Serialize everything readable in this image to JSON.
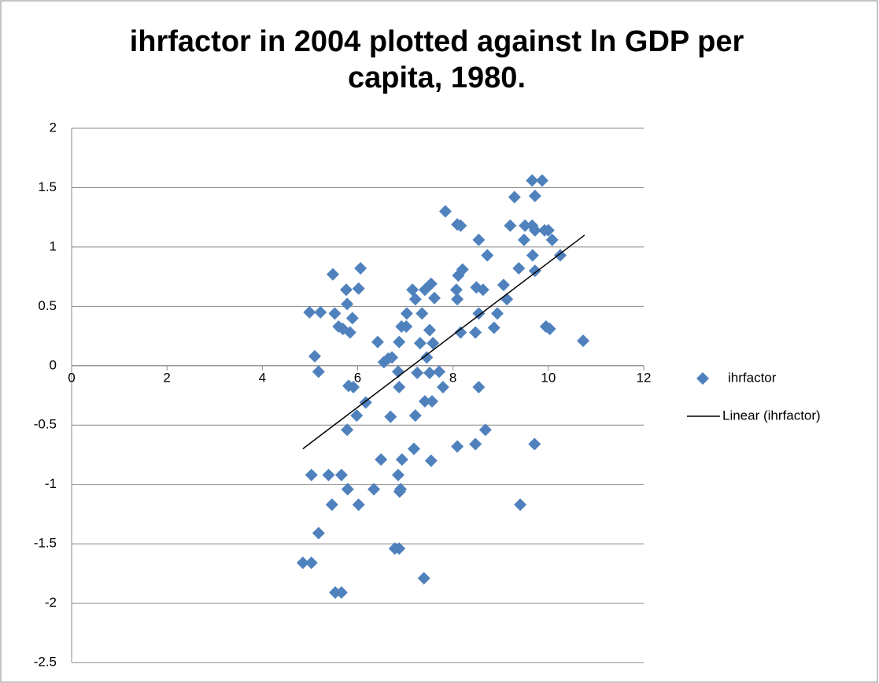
{
  "chart_data": {
    "type": "scatter",
    "title": "ihrfactor in 2004 plotted against ln GDP per capita, 1980.",
    "xlim": [
      0,
      12
    ],
    "xticks": [
      0,
      2,
      4,
      6,
      8,
      10,
      12
    ],
    "ylim": [
      -2.5,
      2
    ],
    "yticks": [
      -2.5,
      -2,
      -1.5,
      -1,
      -0.5,
      0,
      0.5,
      1,
      1.5,
      2
    ],
    "grid": true,
    "legend": "right",
    "series": [
      {
        "name": "ihrfactor",
        "color": "#4f81bd",
        "x": [
          4.99,
          5.22,
          5.1,
          5.18,
          5.48,
          5.52,
          5.6,
          5.69,
          5.76,
          5.78,
          5.84,
          5.89,
          6.06,
          6.02,
          5.81,
          5.91,
          5.78,
          5.98,
          6.17,
          6.42,
          6.55,
          6.64,
          6.72,
          6.69,
          6.85,
          6.87,
          6.92,
          6.87,
          7.02,
          7.03,
          7.15,
          7.21,
          7.25,
          7.21,
          7.35,
          7.41,
          7.31,
          7.45,
          7.51,
          7.54,
          7.61,
          7.51,
          7.58,
          7.71,
          7.56,
          7.41,
          7.79,
          7.84,
          8.09,
          8.16,
          8.11,
          8.2,
          8.07,
          8.09,
          8.16,
          8.47,
          8.49,
          8.63,
          8.54,
          8.72,
          8.54,
          8.54,
          8.68,
          8.09,
          8.47,
          8.86,
          8.93,
          9.06,
          9.13,
          9.2,
          9.29,
          9.38,
          9.49,
          9.51,
          9.66,
          9.66,
          9.72,
          9.67,
          9.72,
          9.72,
          9.87,
          9.92,
          10.0,
          10.08,
          10.25,
          9.95,
          10.03,
          10.73,
          9.71,
          9.41,
          5.03,
          5.39,
          5.66,
          5.79,
          5.46,
          6.02,
          6.34,
          6.49,
          6.85,
          6.9,
          6.93,
          7.18,
          7.54,
          6.88,
          5.18,
          4.85,
          5.03,
          5.53,
          5.66,
          6.78,
          6.87,
          7.39
        ],
        "values": [
          0.45,
          0.45,
          0.08,
          -0.05,
          0.77,
          0.44,
          0.33,
          0.31,
          0.64,
          0.52,
          0.28,
          0.4,
          0.82,
          0.65,
          -0.17,
          -0.18,
          -0.54,
          -0.42,
          -0.31,
          0.2,
          0.03,
          0.06,
          0.07,
          -0.43,
          -0.05,
          -0.18,
          0.33,
          0.2,
          0.33,
          0.44,
          0.64,
          0.56,
          -0.06,
          -0.42,
          0.44,
          0.64,
          0.19,
          0.07,
          0.3,
          0.69,
          0.57,
          -0.06,
          0.19,
          -0.05,
          -0.3,
          -0.3,
          -0.18,
          1.3,
          1.19,
          1.18,
          0.76,
          0.81,
          0.64,
          0.56,
          0.28,
          0.28,
          0.66,
          0.64,
          1.06,
          0.93,
          0.44,
          -0.18,
          -0.54,
          -0.68,
          -0.66,
          0.32,
          0.44,
          0.68,
          0.56,
          1.18,
          1.42,
          0.82,
          1.06,
          1.18,
          1.56,
          1.18,
          1.14,
          0.93,
          0.8,
          1.43,
          1.56,
          1.14,
          1.14,
          1.06,
          0.93,
          0.33,
          0.31,
          0.21,
          -0.66,
          -1.17,
          -0.92,
          -0.92,
          -0.92,
          -1.04,
          -1.17,
          -1.17,
          -1.04,
          -0.79,
          -0.92,
          -1.04,
          -0.79,
          -0.7,
          -0.8,
          -1.06,
          -1.41,
          -1.66,
          -1.66,
          -1.91,
          -1.91,
          -1.54,
          -1.54,
          -1.79
        ]
      },
      {
        "name": "Linear (ihrfactor)",
        "color": "#000000",
        "type": "line",
        "x": [
          4.85,
          10.76
        ],
        "values": [
          -0.7,
          1.1
        ]
      }
    ]
  }
}
